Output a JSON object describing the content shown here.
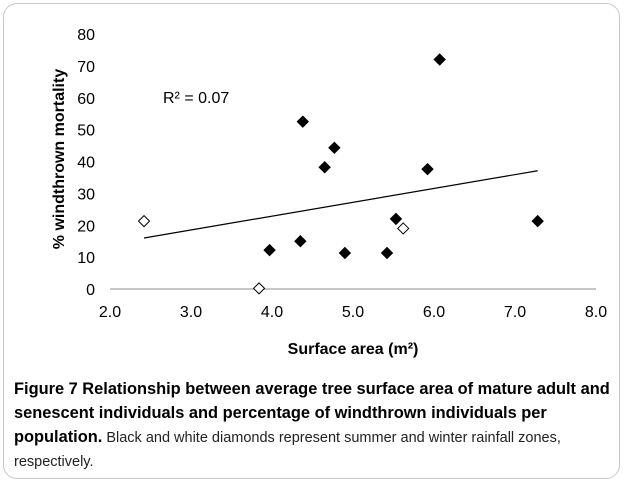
{
  "chart_data": {
    "type": "scatter",
    "xlabel": "Surface area (m²)",
    "ylabel": "% windthrown mortality",
    "xlim": [
      2.0,
      8.0
    ],
    "ylim": [
      0,
      80
    ],
    "x_ticks": [
      "2.0",
      "3.0",
      "4.0",
      "5.0",
      "6.0",
      "7.0",
      "8.0"
    ],
    "y_ticks": [
      "0",
      "10",
      "20",
      "30",
      "40",
      "50",
      "60",
      "70",
      "80"
    ],
    "grid": false,
    "annotation": "R² = 0.07",
    "series": [
      {
        "marker": "filled-diamond",
        "color": "#000000",
        "points": [
          {
            "x": 3.97,
            "y": 12.2
          },
          {
            "x": 4.35,
            "y": 15.0
          },
          {
            "x": 4.38,
            "y": 52.5
          },
          {
            "x": 4.65,
            "y": 38.2
          },
          {
            "x": 4.77,
            "y": 44.3
          },
          {
            "x": 4.9,
            "y": 11.3
          },
          {
            "x": 5.42,
            "y": 11.3
          },
          {
            "x": 5.53,
            "y": 22.0
          },
          {
            "x": 5.92,
            "y": 37.6
          },
          {
            "x": 6.07,
            "y": 72.0
          },
          {
            "x": 7.28,
            "y": 21.3
          }
        ]
      },
      {
        "marker": "hollow-diamond",
        "color": "#000000",
        "points": [
          {
            "x": 2.42,
            "y": 21.3
          },
          {
            "x": 3.84,
            "y": 0.2
          },
          {
            "x": 5.62,
            "y": 19.0
          }
        ]
      }
    ],
    "trendline": {
      "x": [
        2.42,
        7.28
      ],
      "y": [
        16.0,
        37.1
      ]
    }
  },
  "caption": {
    "title": "Figure 7 Relationship between average tree surface area of mature adult and senescent individuals and percentage of windthrown individuals per population.",
    "body": " Black and white diamonds represent summer and winter rainfall zones, respectively."
  }
}
